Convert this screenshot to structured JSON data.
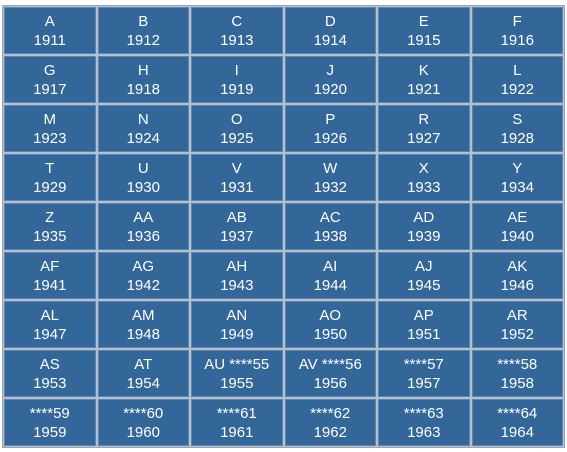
{
  "table": {
    "rows": [
      [
        {
          "code": "A",
          "year": "1911"
        },
        {
          "code": "B",
          "year": "1912"
        },
        {
          "code": "C",
          "year": "1913"
        },
        {
          "code": "D",
          "year": "1914"
        },
        {
          "code": "E",
          "year": "1915"
        },
        {
          "code": "F",
          "year": "1916"
        }
      ],
      [
        {
          "code": "G",
          "year": "1917"
        },
        {
          "code": "H",
          "year": "1918"
        },
        {
          "code": "I",
          "year": "1919"
        },
        {
          "code": "J",
          "year": "1920"
        },
        {
          "code": "K",
          "year": "1921"
        },
        {
          "code": "L",
          "year": "1922"
        }
      ],
      [
        {
          "code": "M",
          "year": "1923"
        },
        {
          "code": "N",
          "year": "1924"
        },
        {
          "code": "O",
          "year": "1925"
        },
        {
          "code": "P",
          "year": "1926"
        },
        {
          "code": "R",
          "year": "1927"
        },
        {
          "code": "S",
          "year": "1928"
        }
      ],
      [
        {
          "code": "T",
          "year": "1929"
        },
        {
          "code": "U",
          "year": "1930"
        },
        {
          "code": "V",
          "year": "1931"
        },
        {
          "code": "W",
          "year": "1932"
        },
        {
          "code": "X",
          "year": "1933"
        },
        {
          "code": "Y",
          "year": "1934"
        }
      ],
      [
        {
          "code": "Z",
          "year": "1935"
        },
        {
          "code": "AA",
          "year": "1936"
        },
        {
          "code": "AB",
          "year": "1937"
        },
        {
          "code": "AC",
          "year": "1938"
        },
        {
          "code": "AD",
          "year": "1939"
        },
        {
          "code": "AE",
          "year": "1940"
        }
      ],
      [
        {
          "code": "AF",
          "year": "1941"
        },
        {
          "code": "AG",
          "year": "1942"
        },
        {
          "code": "AH",
          "year": "1943"
        },
        {
          "code": "AI",
          "year": "1944"
        },
        {
          "code": "AJ",
          "year": "1945"
        },
        {
          "code": "AK",
          "year": "1946"
        }
      ],
      [
        {
          "code": "AL",
          "year": "1947"
        },
        {
          "code": "AM",
          "year": "1948"
        },
        {
          "code": "AN",
          "year": "1949"
        },
        {
          "code": "AO",
          "year": "1950"
        },
        {
          "code": "AP",
          "year": "1951"
        },
        {
          "code": "AR",
          "year": "1952"
        }
      ],
      [
        {
          "code": "AS",
          "year": "1953"
        },
        {
          "code": "AT",
          "year": "1954"
        },
        {
          "code": "AU ****55",
          "year": "1955"
        },
        {
          "code": "AV ****56",
          "year": "1956"
        },
        {
          "code": "****57",
          "year": "1957"
        },
        {
          "code": "****58",
          "year": "1958"
        }
      ],
      [
        {
          "code": "****59",
          "year": "1959"
        },
        {
          "code": "****60",
          "year": "1960"
        },
        {
          "code": "****61",
          "year": "1961"
        },
        {
          "code": "****62",
          "year": "1962"
        },
        {
          "code": "****63",
          "year": "1963"
        },
        {
          "code": "****64",
          "year": "1964"
        }
      ]
    ],
    "colors": {
      "cell_background": "#336699",
      "text": "#ffffff",
      "grid_lines": "#b8c0cc"
    }
  }
}
